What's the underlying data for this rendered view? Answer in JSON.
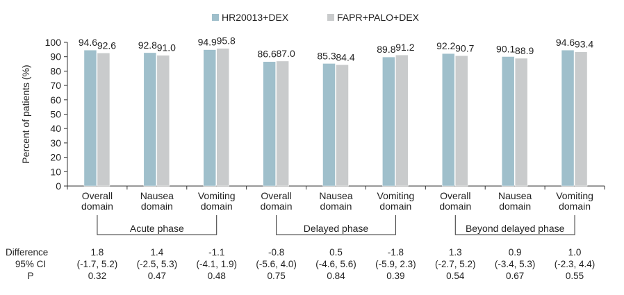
{
  "chart_data": {
    "type": "bar",
    "ylabel": "Percent of patients (%)",
    "ylim": [
      0,
      100
    ],
    "yticks": [
      0,
      10,
      20,
      30,
      40,
      50,
      60,
      70,
      80,
      90,
      100
    ],
    "legend_position": "top",
    "categories": [
      {
        "line1": "Overall",
        "line2": "domain"
      },
      {
        "line1": "Nausea",
        "line2": "domain"
      },
      {
        "line1": "Vomiting",
        "line2": "domain"
      },
      {
        "line1": "Overall",
        "line2": "domain"
      },
      {
        "line1": "Nausea",
        "line2": "domain"
      },
      {
        "line1": "Vomiting",
        "line2": "domain"
      },
      {
        "line1": "Overall",
        "line2": "domain"
      },
      {
        "line1": "Nausea",
        "line2": "domain"
      },
      {
        "line1": "Vomiting",
        "line2": "domain"
      }
    ],
    "series": [
      {
        "name": "HR20013+DEX",
        "color": "#9fbfcb",
        "values": [
          94.6,
          92.8,
          94.9,
          86.6,
          85.3,
          89.8,
          92.2,
          90.1,
          94.6
        ],
        "labels": [
          "94.6",
          "92.8",
          "94.9",
          "86.6",
          "85.3",
          "89.8",
          "92.2",
          "90.1",
          "94.6"
        ]
      },
      {
        "name": "FAPR+PALO+DEX",
        "color": "#c9cbcc",
        "values": [
          92.6,
          91.0,
          95.8,
          87.0,
          84.4,
          91.2,
          90.7,
          88.9,
          93.4
        ],
        "labels": [
          "92.6",
          "91.0",
          "95.8",
          "87.0",
          "84.4",
          "91.2",
          "90.7",
          "88.9",
          "93.4"
        ]
      }
    ],
    "groups": [
      {
        "label": "Acute phase",
        "start": 0,
        "end": 2
      },
      {
        "label": "Delayed phase",
        "start": 3,
        "end": 5
      },
      {
        "label": "Beyond delayed phase",
        "start": 6,
        "end": 8
      }
    ],
    "stats": {
      "row_labels": [
        "Difference",
        "95% CI",
        "P"
      ],
      "difference": [
        "1.8",
        "1.4",
        "-1.1",
        "-0.8",
        "0.5",
        "-1.8",
        "1.3",
        "0.9",
        "1.0"
      ],
      "ci": [
        "(-1.7, 5.2)",
        "(-2.5, 5.3)",
        "(-4.1, 1.9)",
        "(-5.6, 4.0)",
        "(-4.6, 5.6)",
        "(-5.9, 2.3)",
        "(-2.7, 5.2)",
        "(-3.4, 5.3)",
        "(-2.3, 4.4)"
      ],
      "p": [
        "0.32",
        "0.47",
        "0.48",
        "0.75",
        "0.84",
        "0.39",
        "0.54",
        "0.67",
        "0.55"
      ]
    }
  }
}
